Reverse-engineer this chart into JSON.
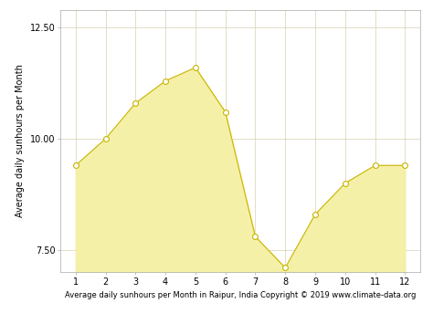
{
  "months": [
    1,
    2,
    3,
    4,
    5,
    6,
    7,
    8,
    9,
    10,
    11,
    12
  ],
  "sunhours": [
    9.4,
    10.0,
    10.8,
    11.3,
    11.6,
    10.6,
    7.8,
    7.1,
    8.3,
    9.0,
    9.4,
    9.4
  ],
  "line_color": "#c8b400",
  "fill_color": "#f5f0a8",
  "marker_facecolor": "#ffffff",
  "marker_edgecolor": "#c8b400",
  "background_color": "#ffffff",
  "grid_color": "#d8d0b0",
  "spine_color": "#aaaaaa",
  "ylabel": "Average daily sunhours per Month",
  "xlabel": "Average daily sunhours per Month in Raipur, India Copyright © 2019 www.climate-data.org",
  "ylim": [
    7.0,
    12.9
  ],
  "xlim": [
    0.5,
    12.5
  ],
  "yticks": [
    7.5,
    10.0,
    12.5
  ],
  "xticks": [
    1,
    2,
    3,
    4,
    5,
    6,
    7,
    8,
    9,
    10,
    11,
    12
  ],
  "ylabel_fontsize": 7,
  "xlabel_fontsize": 6,
  "tick_fontsize": 7,
  "line_width": 0.8,
  "marker_size": 18,
  "marker_linewidth": 0.8
}
